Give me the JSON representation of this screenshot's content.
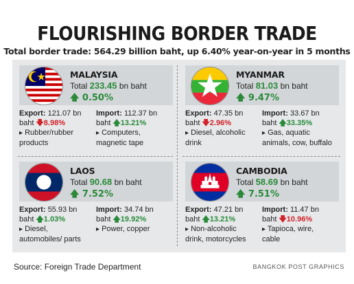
{
  "title": "FLOURISHING BORDER TRADE",
  "subtitle": "Total border trade: 564.29 billion baht, up 6.40% year-on-year in 5 months",
  "source": "Source: Foreign Trade Department",
  "credit": "BANGKOK POST GRAPHICS",
  "countries": [
    {
      "name": "MALAYSIA",
      "total_prefix": "Total",
      "total_value": "233.45",
      "total_unit": "bn baht",
      "growth": "0.50%",
      "export_label": "Export:",
      "export_value": "121.07 bn",
      "export_unit": "baht",
      "export_pct": "8.98%",
      "export_dir": "down",
      "export_items_1": "Rubber/rubber",
      "export_items_2": "products",
      "import_label": "Import:",
      "import_value": "112.37 bn",
      "import_unit": "baht",
      "import_pct": "13.21%",
      "import_dir": "up",
      "import_items_1": "Computers,",
      "import_items_2": "magnetic tape"
    },
    {
      "name": "MYANMAR",
      "total_prefix": "Total",
      "total_value": "81.03",
      "total_unit": "bn baht",
      "growth": "9.47%",
      "export_label": "Export:",
      "export_value": "47.35 bn",
      "export_unit": "baht",
      "export_pct": "2.96%",
      "export_dir": "down",
      "export_items_1": "Diesel, alcoholic",
      "export_items_2": "drink",
      "import_label": "Import:",
      "import_value": "33.67 bn",
      "import_unit": "baht",
      "import_pct": "33.35%",
      "import_dir": "up",
      "import_items_1": "Gas, aquatic",
      "import_items_2": "animals, cow, buffalo"
    },
    {
      "name": "LAOS",
      "total_prefix": "Total",
      "total_value": "90.68",
      "total_unit": "bn baht",
      "growth": "7.52%",
      "export_label": "Export:",
      "export_value": "55.93 bn",
      "export_unit": "baht",
      "export_pct": "1.03%",
      "export_dir": "up",
      "export_items_1": "Diesel,",
      "export_items_2": "automobiles/ parts",
      "import_label": "Import:",
      "import_value": "34.74 bn",
      "import_unit": "baht",
      "import_pct": "19.92%",
      "import_dir": "up",
      "import_items_1": "Power, copper",
      "import_items_2": ""
    },
    {
      "name": "CAMBODIA",
      "total_prefix": "Total",
      "total_value": "58.69",
      "total_unit": "bn baht",
      "growth": "7.51%",
      "export_label": "Export:",
      "export_value": "47.21 bn",
      "export_unit": "baht",
      "export_pct": "13.21%",
      "export_dir": "up",
      "export_items_1": "Non-alcoholic",
      "export_items_2": "drink, motorcycles",
      "import_label": "Import:",
      "import_value": "11.47 bn",
      "import_unit": "baht",
      "import_pct": "10.96%",
      "import_dir": "down",
      "import_items_1": "Tapioca, wire,",
      "import_items_2": "cable"
    }
  ],
  "colors": {
    "up": "#2a8a3a",
    "down": "#d2232a",
    "panel": "#e6e8ea",
    "header": "#d3d6d9"
  }
}
